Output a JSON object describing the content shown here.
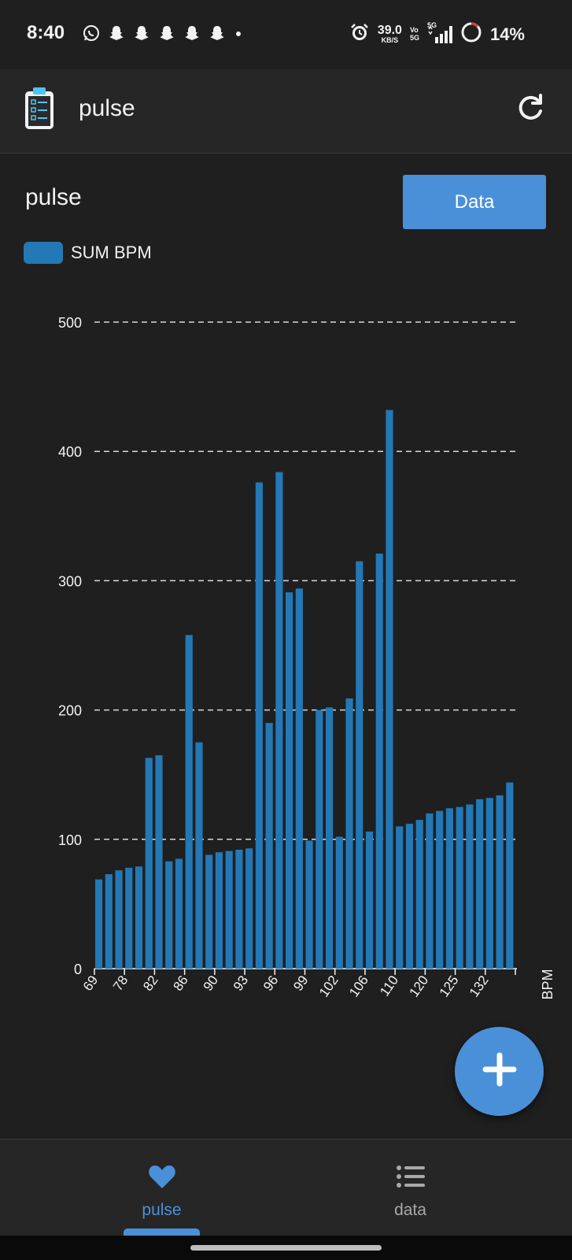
{
  "status_bar": {
    "time": "8:40",
    "net_speed_value": "39.0",
    "net_speed_unit": "KB/S",
    "volte_top": "Vo",
    "volte_bottom": "5G",
    "network_type": "5G",
    "battery": "14%",
    "left_icons": [
      "whatsapp-icon",
      "snapchat-icon",
      "snapchat-icon",
      "snapchat-icon",
      "snapchat-icon",
      "snapchat-icon",
      "dot-icon"
    ],
    "right_icons": [
      "alarm-icon",
      "signal-icon",
      "battery-ring-icon"
    ]
  },
  "app_bar": {
    "title": "pulse",
    "logo_icon": "clipboard-icon",
    "refresh_icon": "refresh-icon"
  },
  "chart_header": {
    "title": "pulse",
    "data_button": "Data"
  },
  "chart_data": {
    "type": "bar",
    "legend": [
      {
        "label": "SUM BPM",
        "color": "#2378b5"
      }
    ],
    "series": [
      {
        "name": "SUM BPM",
        "color": "#2378b5",
        "values": [
          69,
          73,
          76,
          78,
          79,
          163,
          165,
          83,
          85,
          258,
          175,
          88,
          90,
          91,
          92,
          93,
          376,
          190,
          384,
          291,
          294,
          99,
          200,
          202,
          102,
          209,
          315,
          106,
          321,
          432,
          110,
          112,
          115,
          120,
          122,
          124,
          125,
          127,
          131,
          132,
          134,
          144
        ]
      }
    ],
    "x_tick_labels": [
      "69",
      "78",
      "82",
      "86",
      "90",
      "93",
      "96",
      "99",
      "102",
      "106",
      "110",
      "120",
      "125",
      "132"
    ],
    "y_ticks": [
      0,
      100,
      200,
      300,
      400,
      500
    ],
    "ylim": [
      0,
      500
    ],
    "ylabel": "BPM",
    "grid": "dashed horizontal"
  },
  "fab": {
    "icon": "plus-icon"
  },
  "bottom_nav": {
    "items": [
      {
        "label": "pulse",
        "icon": "heart-icon",
        "active": true
      },
      {
        "label": "data",
        "icon": "list-icon",
        "active": false
      }
    ]
  },
  "colors": {
    "background": "#1f1f1f",
    "app_bar": "#262626",
    "accent": "#4a90d9",
    "bar": "#2378b5",
    "grid": "#d9d9d9",
    "inactive": "#a8a8a8"
  }
}
